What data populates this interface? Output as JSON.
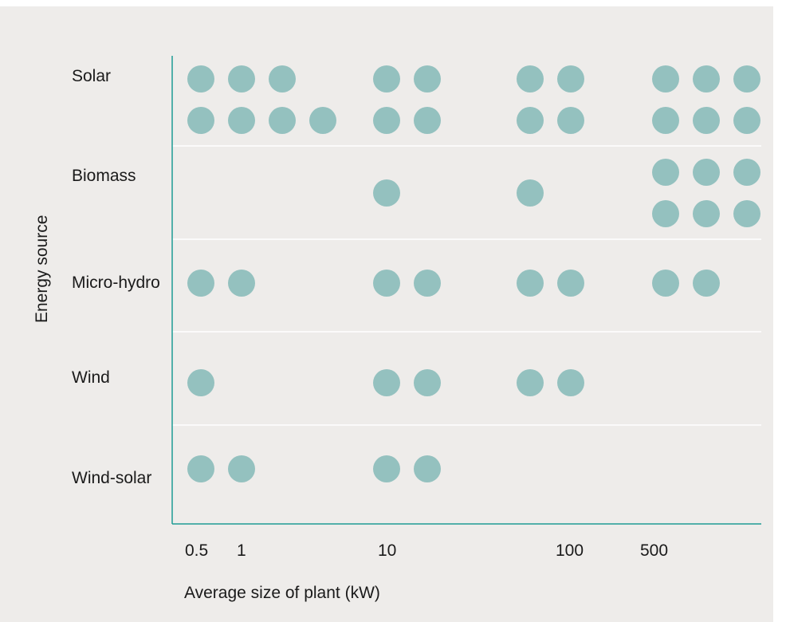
{
  "chart_data": {
    "type": "scatter",
    "xlabel": "Average size of plant (kW)",
    "ylabel": "Energy source",
    "x_ticks": [
      "0.5",
      "1",
      "10",
      "100",
      "500"
    ],
    "categories": [
      "Solar",
      "Biomass",
      "Micro-hydro",
      "Wind",
      "Wind-solar"
    ],
    "dot_color": "#94c1bf",
    "axis_color": "#1e9b94",
    "grid": "horizontal separators between categories",
    "dot_counts": {
      "Solar": {
        "0.5": 2,
        "1": 2,
        "10": 4,
        "100": 4,
        "500": 6
      },
      "Biomass": {
        "0.5": 0,
        "1": 0,
        "10": 1,
        "100": 1,
        "500": 6
      },
      "Micro-hydro": {
        "0.5": 1,
        "1": 1,
        "10": 2,
        "100": 2,
        "500": 2
      },
      "Wind": {
        "0.5": 1,
        "1": 0,
        "10": 2,
        "100": 2,
        "500": 0
      },
      "Wind-solar": {
        "0.5": 1,
        "1": 1,
        "10": 2,
        "100": 0,
        "500": 0
      }
    }
  }
}
